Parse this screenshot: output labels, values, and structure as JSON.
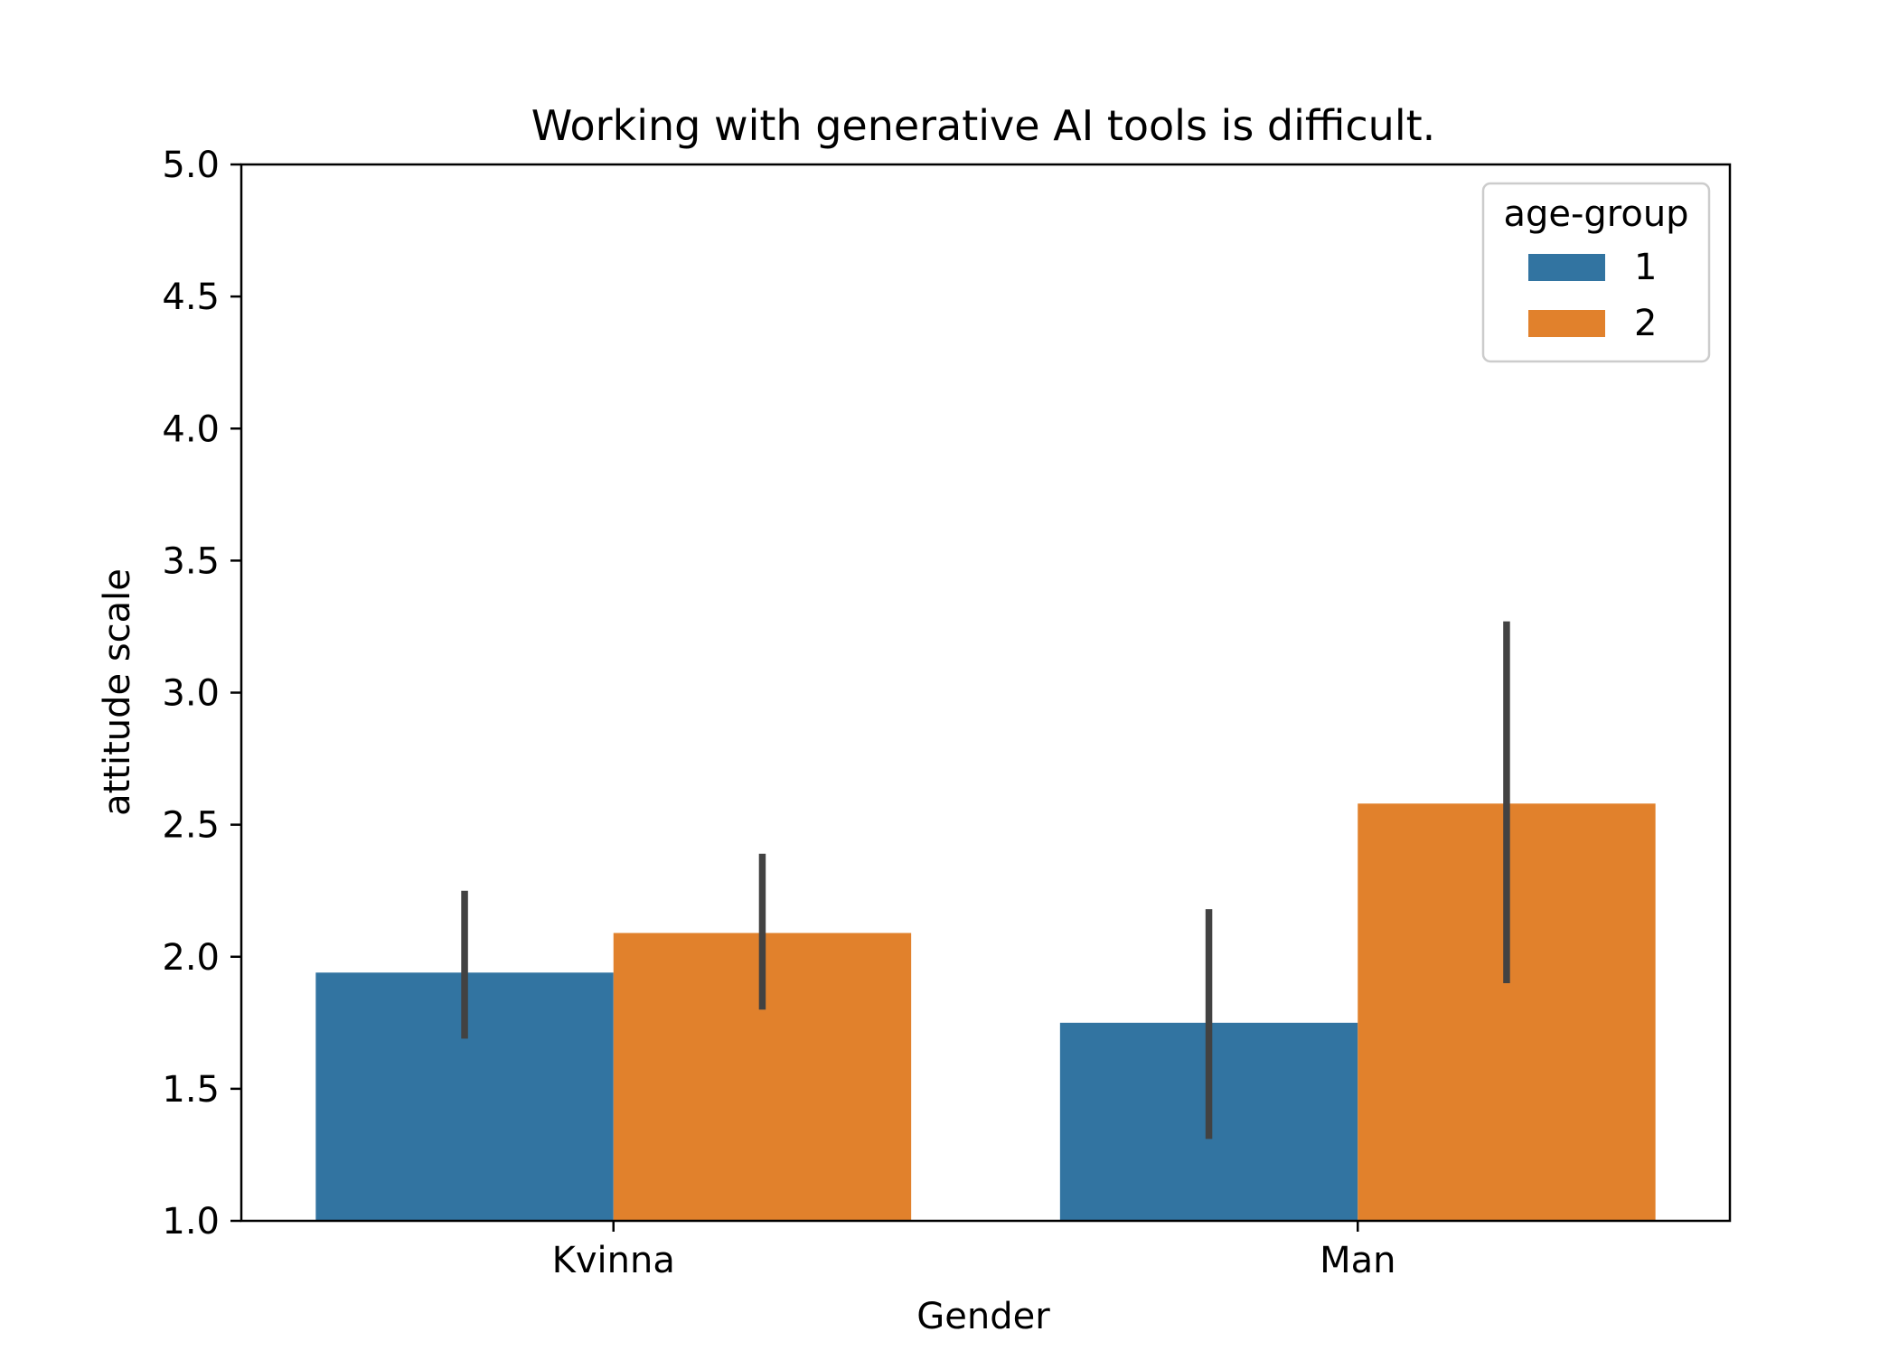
{
  "chart_data": {
    "type": "bar",
    "title": "Working with generative AI tools is difficult.",
    "xlabel": "Gender",
    "ylabel": "attitude scale",
    "categories": [
      "Kvinna",
      "Man"
    ],
    "ylim": [
      1.0,
      5.0
    ],
    "yticks": [
      "1.0",
      "1.5",
      "2.0",
      "2.5",
      "3.0",
      "3.5",
      "4.0",
      "4.5",
      "5.0"
    ],
    "grid": false,
    "legend": {
      "title": "age-group",
      "placement": "top-right"
    },
    "series": [
      {
        "name": "1",
        "color": "#3274a1",
        "values": [
          1.94,
          1.75
        ],
        "ci_low": [
          1.69,
          1.31
        ],
        "ci_high": [
          2.25,
          2.18
        ]
      },
      {
        "name": "2",
        "color": "#e1812c",
        "values": [
          2.09,
          2.58
        ],
        "ci_low": [
          1.8,
          1.9
        ],
        "ci_high": [
          2.39,
          3.27
        ]
      }
    ],
    "errorbar_color": "#424242"
  }
}
